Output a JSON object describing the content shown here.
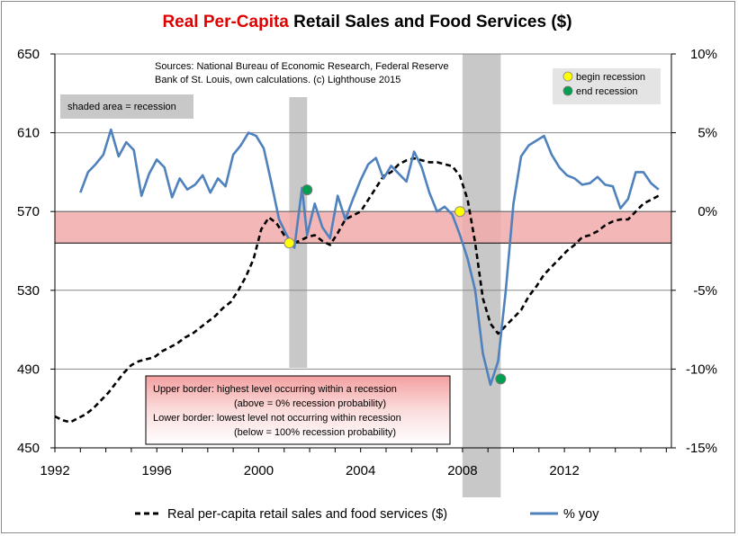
{
  "title": {
    "highlight": "Real Per-Capita",
    "rest": " Retail Sales and Food Services ($)"
  },
  "annotations": {
    "source_line1": "Sources: National Bureau of Economic Research, Federal Reserve",
    "source_line2": "Bank of St. Louis, own calculations. (c) Lighthouse 2015",
    "shaded_note": "shaded area = recession",
    "border_line1": "Upper border: highest level occurring within a recession",
    "border_line2": "(above = 0% recession probability)",
    "border_line3": "Lower border: lowest level not occurring within recession",
    "border_line4": "(below = 100% recession probability)",
    "begin_label": "begin recession",
    "end_label": "end recession"
  },
  "colors": {
    "title_highlight": "#e00000",
    "yoy_line": "#4f81bd",
    "sales_line": "#000000",
    "recession_shade": "#c8c8c8",
    "band_fill": "#f2aaaa",
    "begin_marker": "#ffff00",
    "end_marker": "#00a050"
  },
  "chart_data": {
    "type": "line",
    "x_ticks": [
      "1992",
      "1996",
      "2000",
      "2004",
      "2008",
      "2012"
    ],
    "x_tick_values": [
      1992,
      1996,
      2000,
      2004,
      2008,
      2012
    ],
    "xlim": [
      1992,
      2016.2
    ],
    "y_left_ticks": [
      "650",
      "610",
      "570",
      "530",
      "490",
      "450"
    ],
    "y_left_tick_values": [
      650,
      610,
      570,
      530,
      490,
      450
    ],
    "ylim_left": [
      450,
      650
    ],
    "y_right_ticks": [
      "10%",
      "5%",
      "0%",
      "-5%",
      "-10%",
      "-15%"
    ],
    "y_right_tick_values": [
      10,
      5,
      0,
      -5,
      -10,
      -15
    ],
    "ylim_right": [
      -15,
      10
    ],
    "grid": "horizontal",
    "recessions": [
      [
        2001.2,
        2001.9
      ],
      [
        2008.0,
        2009.5
      ]
    ],
    "band": {
      "upper": 570,
      "lower": 554
    },
    "series": [
      {
        "name": "Real per-capita retail sales and food services ($)",
        "axis": "left",
        "style": "dashed",
        "x": [
          1992.0,
          1992.3,
          1992.6,
          1992.9,
          1993.2,
          1993.5,
          1993.8,
          1994.1,
          1994.4,
          1994.7,
          1995.0,
          1995.3,
          1995.6,
          1995.9,
          1996.2,
          1996.5,
          1996.8,
          1997.1,
          1997.4,
          1997.7,
          1998.0,
          1998.3,
          1998.6,
          1998.9,
          1999.2,
          1999.5,
          1999.8,
          2000.1,
          2000.4,
          2000.7,
          2001.0,
          2001.3,
          2001.6,
          2001.9,
          2002.2,
          2002.5,
          2002.8,
          2003.1,
          2003.4,
          2003.7,
          2004.0,
          2004.3,
          2004.6,
          2004.9,
          2005.2,
          2005.5,
          2005.8,
          2006.1,
          2006.4,
          2006.7,
          2007.0,
          2007.3,
          2007.6,
          2007.9,
          2008.2,
          2008.5,
          2008.8,
          2009.1,
          2009.4,
          2009.7,
          2010.0,
          2010.3,
          2010.6,
          2010.9,
          2011.2,
          2011.5,
          2011.8,
          2012.1,
          2012.4,
          2012.7,
          2013.0,
          2013.3,
          2013.6,
          2013.9,
          2014.2,
          2014.5,
          2014.8,
          2015.1,
          2015.4,
          2015.7
        ],
        "values": [
          466,
          464,
          463,
          465,
          467,
          470,
          474,
          478,
          483,
          488,
          492,
          494,
          495,
          496,
          499,
          501,
          503,
          506,
          508,
          511,
          514,
          517,
          521,
          524,
          530,
          537,
          546,
          561,
          567,
          564,
          558,
          554,
          555,
          557,
          558,
          555,
          553,
          559,
          566,
          568,
          570,
          576,
          582,
          588,
          590,
          594,
          596,
          597,
          596,
          595,
          595,
          594,
          593,
          588,
          576,
          554,
          526,
          513,
          508,
          512,
          516,
          520,
          527,
          532,
          538,
          542,
          546,
          550,
          553,
          557,
          558,
          560,
          563,
          565,
          566,
          566,
          570,
          574,
          576,
          578
        ]
      },
      {
        "name": "% yoy",
        "axis": "right",
        "style": "solid",
        "x": [
          1993.0,
          1993.3,
          1993.6,
          1993.9,
          1994.2,
          1994.5,
          1994.8,
          1995.1,
          1995.4,
          1995.7,
          1996.0,
          1996.3,
          1996.6,
          1996.9,
          1997.2,
          1997.5,
          1997.8,
          1998.1,
          1998.4,
          1998.7,
          1999.0,
          1999.3,
          1999.6,
          1999.9,
          2000.2,
          2000.5,
          2000.8,
          2001.1,
          2001.4,
          2001.7,
          2001.9,
          2002.2,
          2002.5,
          2002.8,
          2003.1,
          2003.4,
          2003.7,
          2004.0,
          2004.3,
          2004.6,
          2004.9,
          2005.2,
          2005.5,
          2005.8,
          2006.1,
          2006.4,
          2006.7,
          2007.0,
          2007.3,
          2007.6,
          2007.9,
          2008.2,
          2008.5,
          2008.8,
          2009.1,
          2009.4,
          2009.7,
          2010.0,
          2010.3,
          2010.6,
          2010.9,
          2011.2,
          2011.5,
          2011.8,
          2012.1,
          2012.4,
          2012.7,
          2013.0,
          2013.3,
          2013.6,
          2013.9,
          2014.2,
          2014.5,
          2014.8,
          2015.1,
          2015.4,
          2015.7
        ],
        "values": [
          1.2,
          2.5,
          3.0,
          3.6,
          5.2,
          3.5,
          4.4,
          3.9,
          1.0,
          2.4,
          3.3,
          2.8,
          0.9,
          2.1,
          1.4,
          1.7,
          2.3,
          1.2,
          2.1,
          1.6,
          3.6,
          4.2,
          5.0,
          4.8,
          4.0,
          1.8,
          -0.5,
          -1.5,
          -2.3,
          1.5,
          -1.5,
          0.5,
          -1.0,
          -1.7,
          1.0,
          -0.5,
          0.8,
          2.0,
          3.0,
          3.4,
          2.1,
          2.9,
          2.4,
          1.9,
          3.8,
          2.8,
          1.2,
          0.0,
          0.3,
          -0.2,
          -1.5,
          -3.0,
          -5.0,
          -9.0,
          -11.0,
          -9.5,
          -5.0,
          0.5,
          3.5,
          4.2,
          4.5,
          4.8,
          3.6,
          2.8,
          2.3,
          2.1,
          1.7,
          1.8,
          2.2,
          1.7,
          1.6,
          0.2,
          0.8,
          2.5,
          2.5,
          1.8,
          1.4
        ]
      }
    ],
    "begin_markers": [
      {
        "x": 2001.2,
        "y": 554
      },
      {
        "x": 2007.9,
        "y": 570
      }
    ],
    "end_markers": [
      {
        "x": 2001.9,
        "y": 581
      },
      {
        "x": 2009.5,
        "y": 485
      }
    ]
  },
  "legend": {
    "sales": "Real per-capita retail sales and food services ($)",
    "yoy": "% yoy"
  }
}
